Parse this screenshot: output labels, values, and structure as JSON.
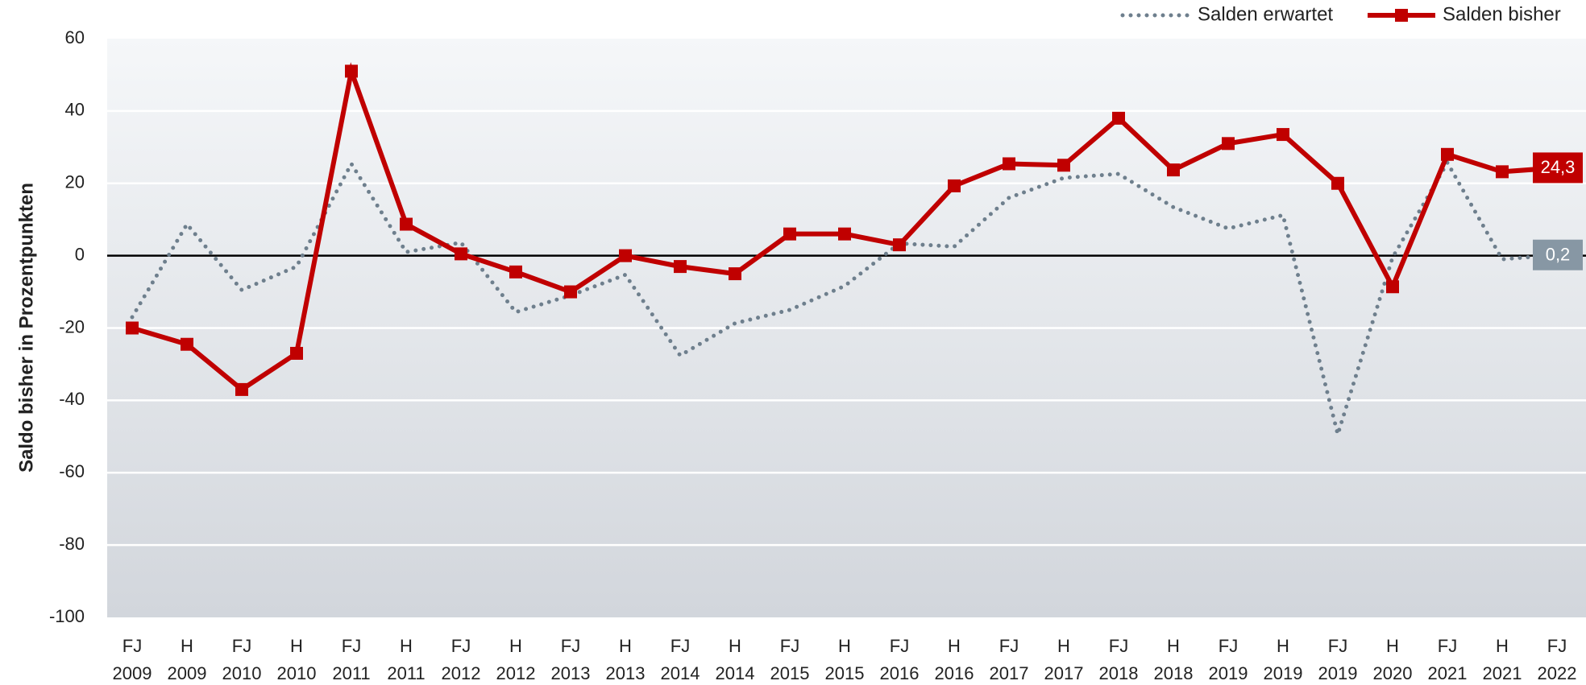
{
  "chart_data": {
    "type": "line",
    "y_label": "Saldo bisher in Prozentpunkten",
    "categories": [
      [
        "FJ",
        "2009"
      ],
      [
        "H",
        "2009"
      ],
      [
        "FJ",
        "2010"
      ],
      [
        "H",
        "2010"
      ],
      [
        "FJ",
        "2011"
      ],
      [
        "H",
        "2011"
      ],
      [
        "FJ",
        "2012"
      ],
      [
        "H",
        "2012"
      ],
      [
        "FJ",
        "2013"
      ],
      [
        "H",
        "2013"
      ],
      [
        "FJ",
        "2014"
      ],
      [
        "H",
        "2014"
      ],
      [
        "FJ",
        "2015"
      ],
      [
        "H",
        "2015"
      ],
      [
        "FJ",
        "2016"
      ],
      [
        "H",
        "2016"
      ],
      [
        "FJ",
        "2017"
      ],
      [
        "H",
        "2017"
      ],
      [
        "FJ",
        "2018"
      ],
      [
        "H",
        "2018"
      ],
      [
        "FJ",
        "2019"
      ],
      [
        "H",
        "2019"
      ],
      [
        "FJ",
        "2019"
      ],
      [
        "H",
        "2020"
      ],
      [
        "FJ",
        "2021"
      ],
      [
        "H",
        "2021"
      ],
      [
        "FJ",
        "2022"
      ]
    ],
    "series": [
      {
        "name": "Salden erwartet",
        "color": "#6e7f8d",
        "style": "dotted",
        "values": [
          -17,
          8.7,
          -9.5,
          -3,
          25.4,
          1,
          3.6,
          -15.6,
          -11,
          -5.3,
          -27.6,
          -18.7,
          -15,
          -8.4,
          3.4,
          2.5,
          16,
          21.5,
          22.6,
          13.4,
          7.5,
          11.2,
          -49.4,
          -0.5,
          25.7,
          -1,
          0.2
        ],
        "value_labels": [
          null,
          null,
          null,
          null,
          null,
          null,
          null,
          null,
          null,
          null,
          null,
          null,
          null,
          null,
          null,
          null,
          null,
          null,
          null,
          null,
          null,
          null,
          null,
          null,
          null,
          null,
          "0,2"
        ],
        "label_color": "#8797a4"
      },
      {
        "name": "Salden bisher",
        "color": "#c00000",
        "style": "solid",
        "values": [
          -20,
          -24.5,
          -37,
          -27,
          51,
          8.7,
          0.5,
          -4.5,
          -10,
          0,
          -3,
          -5,
          6,
          6,
          3,
          19.3,
          25.4,
          25,
          38,
          23.7,
          31,
          33.5,
          20,
          -8.6,
          28,
          23.2,
          24.3
        ],
        "value_labels": [
          null,
          null,
          null,
          null,
          null,
          null,
          null,
          null,
          null,
          null,
          null,
          null,
          null,
          null,
          null,
          null,
          null,
          null,
          null,
          null,
          null,
          null,
          null,
          null,
          null,
          null,
          "24,3"
        ],
        "label_color": "#c00000"
      }
    ],
    "ylim": [
      -100,
      60
    ],
    "yticks": [
      -100,
      -80,
      -60,
      -40,
      -20,
      0,
      20,
      40,
      60
    ],
    "grid": true,
    "legend": "top-right"
  }
}
